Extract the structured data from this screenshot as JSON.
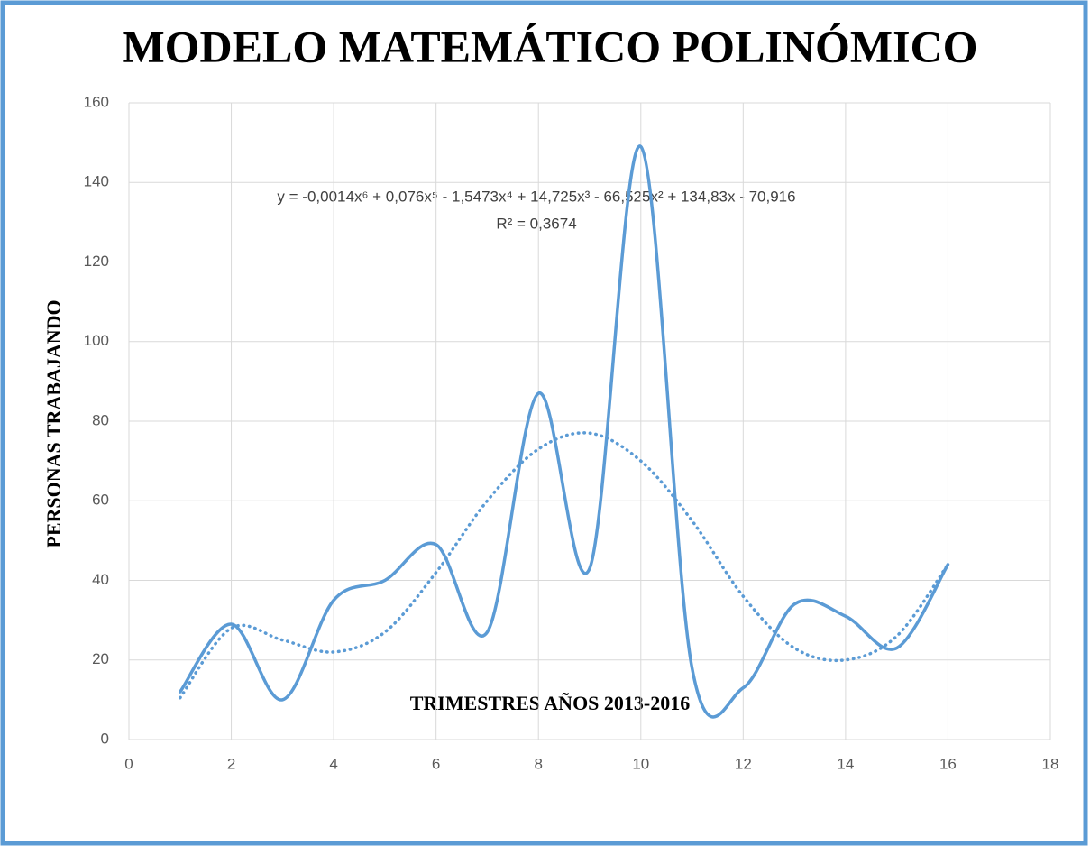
{
  "chart_data": {
    "type": "line",
    "title": "MODELO MATEMÁTICO POLINÓMICO",
    "xlabel": "TRIMESTRES AÑOS 2013-2016",
    "ylabel": "PERSONAS TRABAJANDO",
    "annotations": [
      "y = -0,0014x⁶ + 0,076x⁵ - 1,5473x⁴ + 14,725x³ - 66,525x² + 134,83x - 70,916",
      "R² = 0,3674"
    ],
    "x": [
      1,
      2,
      3,
      4,
      5,
      6,
      7,
      8,
      9,
      10,
      11,
      12,
      13,
      14,
      15,
      16
    ],
    "series": [
      {
        "color": "#5b9bd5",
        "values": [
          12,
          29,
          10,
          35,
          40,
          49,
          27,
          87,
          43,
          149,
          18,
          13,
          34,
          31,
          23,
          44
        ]
      }
    ],
    "trendline": {
      "color": "#5b9bd5",
      "style": "dotted",
      "values": [
        10.5,
        28,
        25,
        22,
        27,
        42,
        60,
        73,
        77,
        70,
        55,
        36,
        23,
        20,
        26,
        44
      ]
    },
    "xlim": [
      0,
      18
    ],
    "xticks": [
      0,
      2,
      4,
      6,
      8,
      10,
      12,
      14,
      16,
      18
    ],
    "ylim": [
      0,
      160
    ],
    "yticks": [
      0,
      20,
      40,
      60,
      80,
      100,
      120,
      140,
      160
    ],
    "grid": true,
    "smooth": true
  }
}
